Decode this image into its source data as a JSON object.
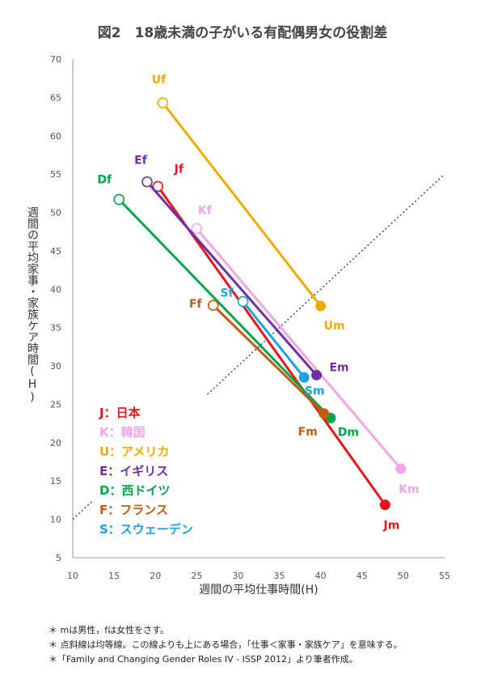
{
  "title": "図2　18歳未満の子がいる有配偶男女の役割差",
  "chart_data": {
    "type": "line",
    "title": "図2　18歳未満の子がいる有配偶男女の役割差",
    "xlabel": "週間の平均仕事時間(H)",
    "ylabel": "週間の平均家事・家族ケア時間(H)",
    "xlim": [
      10,
      55
    ],
    "ylim": [
      5,
      70
    ],
    "xticks": [
      10,
      15,
      20,
      25,
      30,
      35,
      40,
      45,
      50,
      55
    ],
    "yticks": [
      5,
      10,
      15,
      20,
      25,
      30,
      35,
      40,
      45,
      50,
      55,
      60,
      65,
      70
    ],
    "reference_line": "equal-time diagonal (dotted)",
    "series": [
      {
        "name": "J：日本",
        "color": "#e8151b",
        "female_label": "Jf",
        "male_label": "Jm",
        "female": {
          "x": 20.3,
          "y": 53.4
        },
        "male": {
          "x": 47.8,
          "y": 11.9
        }
      },
      {
        "name": "K：韓国",
        "color": "#f2a6e6",
        "female_label": "Kf",
        "male_label": "Km",
        "female": {
          "x": 25.0,
          "y": 47.9
        },
        "male": {
          "x": 49.7,
          "y": 16.6
        }
      },
      {
        "name": "U：アメリカ",
        "color": "#f0ab00",
        "female_label": "Uf",
        "male_label": "Um",
        "female": {
          "x": 20.9,
          "y": 64.3
        },
        "male": {
          "x": 40.0,
          "y": 37.8
        }
      },
      {
        "name": "E：イギリス",
        "color": "#7030a0",
        "female_label": "Ef",
        "male_label": "Em",
        "female": {
          "x": 19.0,
          "y": 54.0
        },
        "male": {
          "x": 39.5,
          "y": 28.8
        }
      },
      {
        "name": "D：西ドイツ",
        "color": "#00a74a",
        "female_label": "Df",
        "male_label": "Dm",
        "female": {
          "x": 15.6,
          "y": 51.7
        },
        "male": {
          "x": 41.2,
          "y": 23.2
        }
      },
      {
        "name": "F：フランス",
        "color": "#c55a11",
        "female_label": "Ff",
        "male_label": "Fm",
        "female": {
          "x": 27.0,
          "y": 37.9
        },
        "male": {
          "x": 40.4,
          "y": 23.8
        }
      },
      {
        "name": "S：スウェーデン",
        "color": "#1ba3e0",
        "female_label": "Sf",
        "male_label": "Sm",
        "female": {
          "x": 30.6,
          "y": 38.4
        },
        "male": {
          "x": 38.0,
          "y": 28.5
        }
      }
    ]
  },
  "notes": [
    "＊ mは男性，fは女性をさす。",
    "＊ 点斜線は均等線。この線よりも上にある場合，「仕事＜家事・家族ケア」を意味する。",
    "＊「Family and Changing Gender Roles IV - ISSP 2012」より筆者作成。"
  ]
}
